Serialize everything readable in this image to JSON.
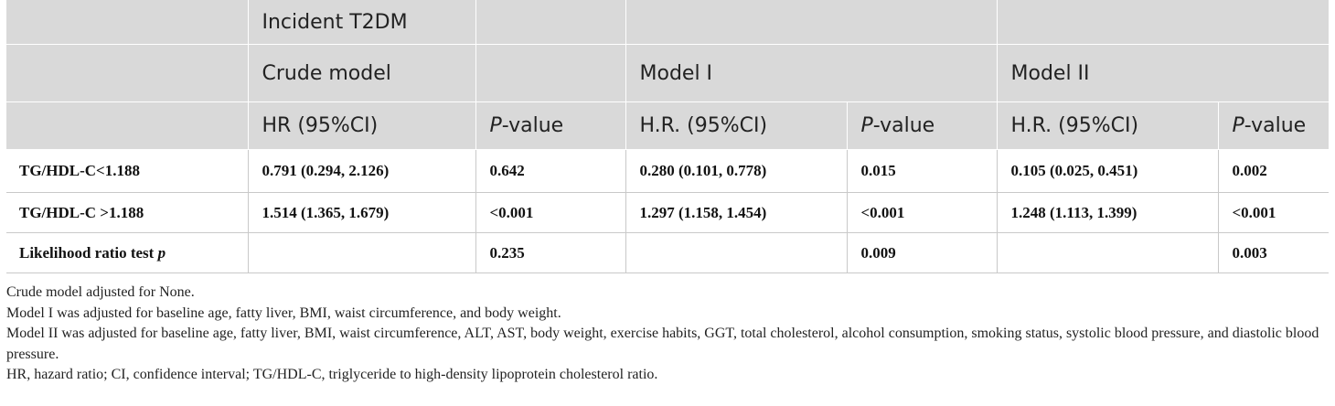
{
  "table": {
    "header": {
      "row1": {
        "outcome": "Incident T2DM"
      },
      "row2": {
        "crude": "Crude model",
        "model1": "Model I",
        "model2": "Model II"
      },
      "row3": {
        "hr_crude": "HR (95%CI)",
        "p_prefix": "P",
        "p_suffix": "-value",
        "hr_model1": "H.R. (95%CI)",
        "hr_model2": "H.R. (95%CI)"
      }
    },
    "rows": [
      {
        "label": "TG/HDL-C<1.188",
        "crude_hr": "0.791 (0.294, 2.126)",
        "crude_p": "0.642",
        "m1_hr": "0.280 (0.101, 0.778)",
        "m1_p": "0.015",
        "m2_hr": "0.105 (0.025, 0.451)",
        "m2_p": "0.002"
      },
      {
        "label": "TG/HDL-C >1.188",
        "crude_hr": "1.514 (1.365, 1.679)",
        "crude_p": "<0.001",
        "m1_hr": "1.297 (1.158, 1.454)",
        "m1_p": "<0.001",
        "m2_hr": "1.248 (1.113, 1.399)",
        "m2_p": "<0.001"
      },
      {
        "label": "Likelihood ratio test",
        "label_italic": "p",
        "crude_hr": "",
        "crude_p": "0.235",
        "m1_hr": "",
        "m1_p": "0.009",
        "m2_hr": "",
        "m2_p": "0.003"
      }
    ]
  },
  "notes": [
    "Crude model adjusted for None.",
    "Model I was adjusted for baseline age, fatty liver, BMI, waist circumference, and body weight.",
    "Model II was adjusted for baseline age, fatty liver, BMI, waist circumference, ALT, AST, body weight, exercise habits, GGT, total cholesterol, alcohol consumption, smoking status, systolic blood pressure, and diastolic blood pressure.",
    "HR, hazard ratio; CI, confidence interval; TG/HDL-C, triglyceride to high-density lipoprotein cholesterol ratio."
  ]
}
